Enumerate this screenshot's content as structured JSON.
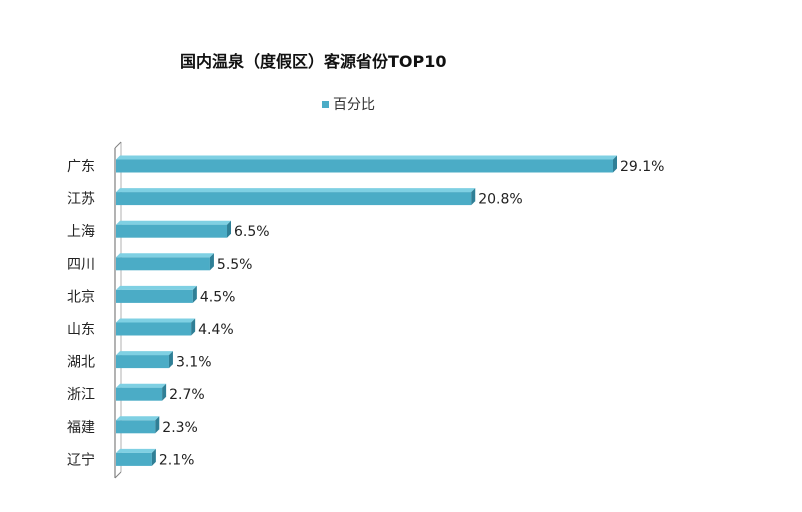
{
  "chart_data": {
    "type": "bar",
    "orientation": "horizontal",
    "title": "国内温泉（度假区）客源省份TOP10",
    "categories": [
      "广东",
      "江苏",
      "上海",
      "四川",
      "北京",
      "山东",
      "湖北",
      "浙江",
      "福建",
      "辽宁"
    ],
    "series": [
      {
        "name": "百分比",
        "values": [
          29.1,
          20.8,
          6.5,
          5.5,
          4.5,
          4.4,
          3.1,
          2.7,
          2.3,
          2.1
        ],
        "labels": [
          "29.1%",
          "20.8%",
          "6.5%",
          "5.5%",
          "4.5%",
          "4.4%",
          "3.1%",
          "2.7%",
          "2.3%",
          "2.1%"
        ]
      }
    ],
    "xlim": [
      0,
      29.1
    ],
    "grid": false,
    "legend_position": "top"
  },
  "colors": {
    "bar": "#4bacc6",
    "bar_top": "#7fd0e3",
    "bar_side": "#2f7f96",
    "axis": "#808080",
    "legend_swatch": "#4bacc6"
  }
}
